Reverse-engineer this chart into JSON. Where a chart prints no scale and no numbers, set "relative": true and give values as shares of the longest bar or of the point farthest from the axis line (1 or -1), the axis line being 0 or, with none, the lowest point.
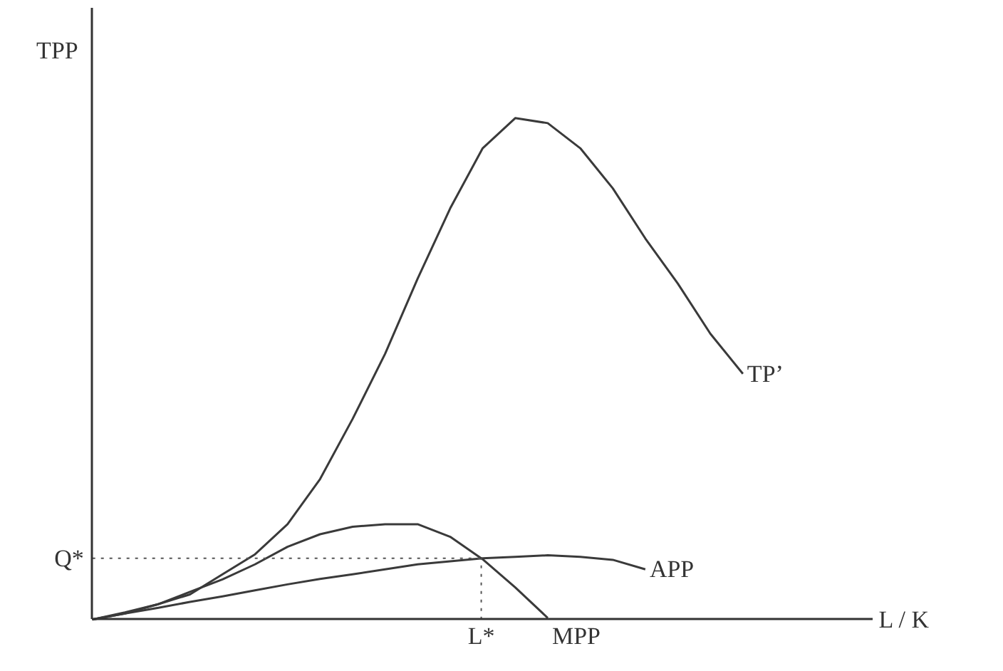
{
  "chart_data": {
    "type": "line",
    "relative": true,
    "xlabel": "L / K",
    "ylabel": "TPP",
    "categories": [
      null,
      null,
      null,
      null,
      null,
      null,
      null,
      null,
      null,
      null,
      null,
      null,
      null,
      null,
      null,
      null,
      null,
      null,
      null,
      null,
      null,
      null,
      null,
      null,
      null,
      null,
      null,
      null
    ],
    "series": [
      {
        "name": "TP’",
        "color": "#3a3a3a",
        "values": [
          0,
          0.012,
          0.03,
          0.05,
          0.09,
          0.13,
          0.19,
          0.28,
          0.4,
          0.53,
          0.68,
          0.82,
          0.94,
          1.0,
          0.99,
          0.94,
          0.86,
          0.76,
          0.67,
          0.57,
          0.49,
          null,
          null,
          null,
          null,
          null,
          null,
          null
        ]
      },
      {
        "name": "APP",
        "color": "#3a3a3a",
        "values": [
          0,
          0.012,
          0.023,
          0.035,
          0.046,
          0.058,
          0.07,
          0.081,
          0.09,
          0.1,
          0.11,
          0.116,
          0.122,
          0.125,
          0.128,
          0.125,
          0.119,
          0.1,
          null,
          null,
          null,
          null,
          null,
          null,
          null,
          null,
          null,
          null
        ]
      },
      {
        "name": "MPP",
        "color": "#3a3a3a",
        "values": [
          0,
          0.014,
          0.03,
          0.055,
          0.08,
          0.11,
          0.145,
          0.17,
          0.185,
          0.19,
          0.19,
          0.165,
          0.12,
          0.064,
          0.003,
          null,
          null,
          null,
          null,
          null,
          null,
          null,
          null,
          null,
          null,
          null,
          null,
          null
        ]
      }
    ],
    "ref_lines": [
      {
        "axis": "y",
        "value": 0.122,
        "label": "Q*",
        "line_style": "dotted",
        "color": "#555555"
      }
    ],
    "annotations": [
      "L*"
    ],
    "marker": "none",
    "line_style": "solid"
  }
}
